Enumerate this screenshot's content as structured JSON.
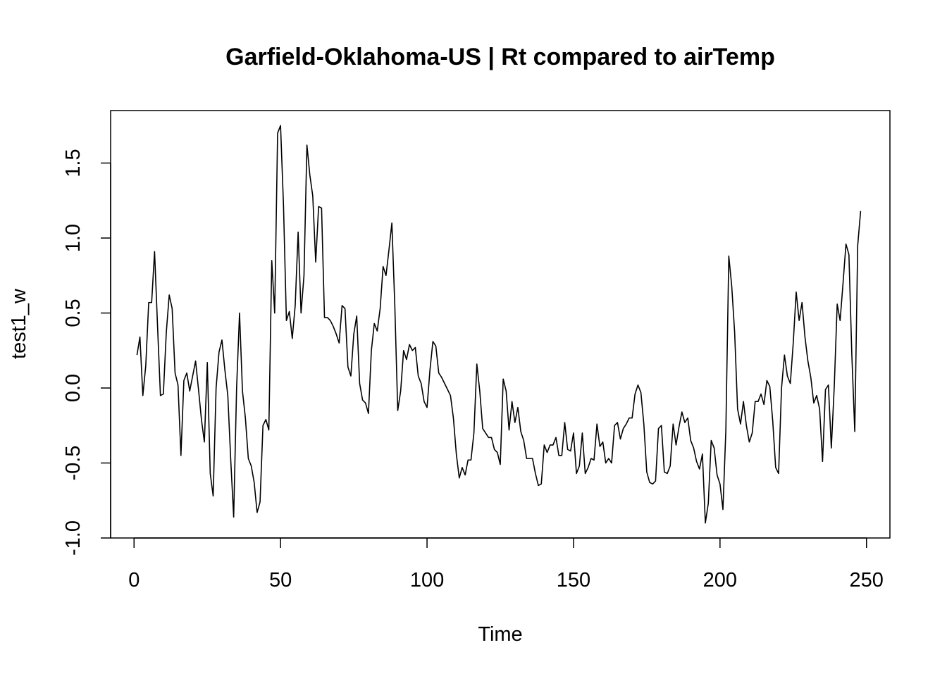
{
  "chart_data": {
    "type": "line",
    "title": "Garfield-Oklahoma-US | Rt compared to airTemp",
    "xlabel": "Time",
    "ylabel": "test1_w",
    "xlim": [
      -8,
      258
    ],
    "ylim": [
      -1.0,
      1.85
    ],
    "xticks": [
      0,
      50,
      100,
      150,
      200,
      250
    ],
    "yticks": [
      -1.0,
      -0.5,
      0.0,
      0.5,
      1.0,
      1.5
    ],
    "ytick_labels": [
      "-1.0",
      "-0.5",
      "0.0",
      "0.5",
      "1.0",
      "1.5"
    ],
    "grid": false,
    "line_color": "#000000",
    "series": [
      {
        "x_start": 1,
        "values": [
          0.22,
          0.34,
          -0.05,
          0.15,
          0.57,
          0.57,
          0.91,
          0.42,
          -0.05,
          -0.04,
          0.37,
          0.62,
          0.53,
          0.1,
          0.02,
          -0.45,
          0.05,
          0.1,
          -0.02,
          0.08,
          0.18,
          -0.01,
          -0.21,
          -0.36,
          0.17,
          -0.57,
          -0.72,
          0.0,
          0.24,
          0.32,
          0.12,
          -0.05,
          -0.48,
          -0.86,
          0.0,
          0.5,
          -0.02,
          -0.2,
          -0.47,
          -0.52,
          -0.63,
          -0.83,
          -0.76,
          -0.25,
          -0.21,
          -0.28,
          0.85,
          0.5,
          1.7,
          1.75,
          1.22,
          0.45,
          0.51,
          0.33,
          0.55,
          1.04,
          0.5,
          0.75,
          1.62,
          1.42,
          1.28,
          0.84,
          1.21,
          1.2,
          0.47,
          0.47,
          0.45,
          0.41,
          0.36,
          0.3,
          0.55,
          0.53,
          0.14,
          0.08,
          0.36,
          0.48,
          0.03,
          -0.08,
          -0.1,
          -0.17,
          0.25,
          0.43,
          0.38,
          0.53,
          0.81,
          0.75,
          0.92,
          1.1,
          0.55,
          -0.15,
          -0.02,
          0.25,
          0.19,
          0.29,
          0.25,
          0.27,
          0.08,
          0.03,
          -0.09,
          -0.13,
          0.12,
          0.31,
          0.28,
          0.1,
          0.07,
          0.03,
          -0.01,
          -0.05,
          -0.2,
          -0.44,
          -0.6,
          -0.53,
          -0.58,
          -0.48,
          -0.48,
          -0.3,
          0.16,
          -0.02,
          -0.27,
          -0.3,
          -0.33,
          -0.33,
          -0.41,
          -0.43,
          -0.51,
          0.06,
          -0.02,
          -0.28,
          -0.09,
          -0.23,
          -0.13,
          -0.29,
          -0.35,
          -0.47,
          -0.47,
          -0.47,
          -0.57,
          -0.65,
          -0.64,
          -0.38,
          -0.43,
          -0.38,
          -0.38,
          -0.33,
          -0.45,
          -0.45,
          -0.23,
          -0.41,
          -0.42,
          -0.3,
          -0.57,
          -0.52,
          -0.3,
          -0.57,
          -0.53,
          -0.47,
          -0.48,
          -0.24,
          -0.39,
          -0.36,
          -0.5,
          -0.47,
          -0.5,
          -0.25,
          -0.23,
          -0.34,
          -0.27,
          -0.24,
          -0.2,
          -0.2,
          -0.04,
          0.02,
          -0.03,
          -0.24,
          -0.56,
          -0.63,
          -0.64,
          -0.62,
          -0.27,
          -0.25,
          -0.56,
          -0.57,
          -0.52,
          -0.24,
          -0.38,
          -0.26,
          -0.16,
          -0.23,
          -0.2,
          -0.35,
          -0.4,
          -0.49,
          -0.54,
          -0.44,
          -0.9,
          -0.77,
          -0.35,
          -0.4,
          -0.58,
          -0.64,
          -0.81,
          -0.28,
          0.88,
          0.68,
          0.37,
          -0.14,
          -0.24,
          -0.09,
          -0.25,
          -0.36,
          -0.3,
          -0.09,
          -0.09,
          -0.04,
          -0.11,
          0.05,
          0.01,
          -0.22,
          -0.53,
          -0.57,
          0.0,
          0.22,
          0.08,
          0.03,
          0.3,
          0.64,
          0.45,
          0.57,
          0.34,
          0.18,
          0.07,
          -0.1,
          -0.05,
          -0.14,
          -0.49,
          -0.01,
          0.02,
          -0.4,
          0.01,
          0.56,
          0.45,
          0.7,
          0.96,
          0.89,
          0.22,
          -0.29,
          0.95,
          1.18
        ]
      }
    ]
  }
}
